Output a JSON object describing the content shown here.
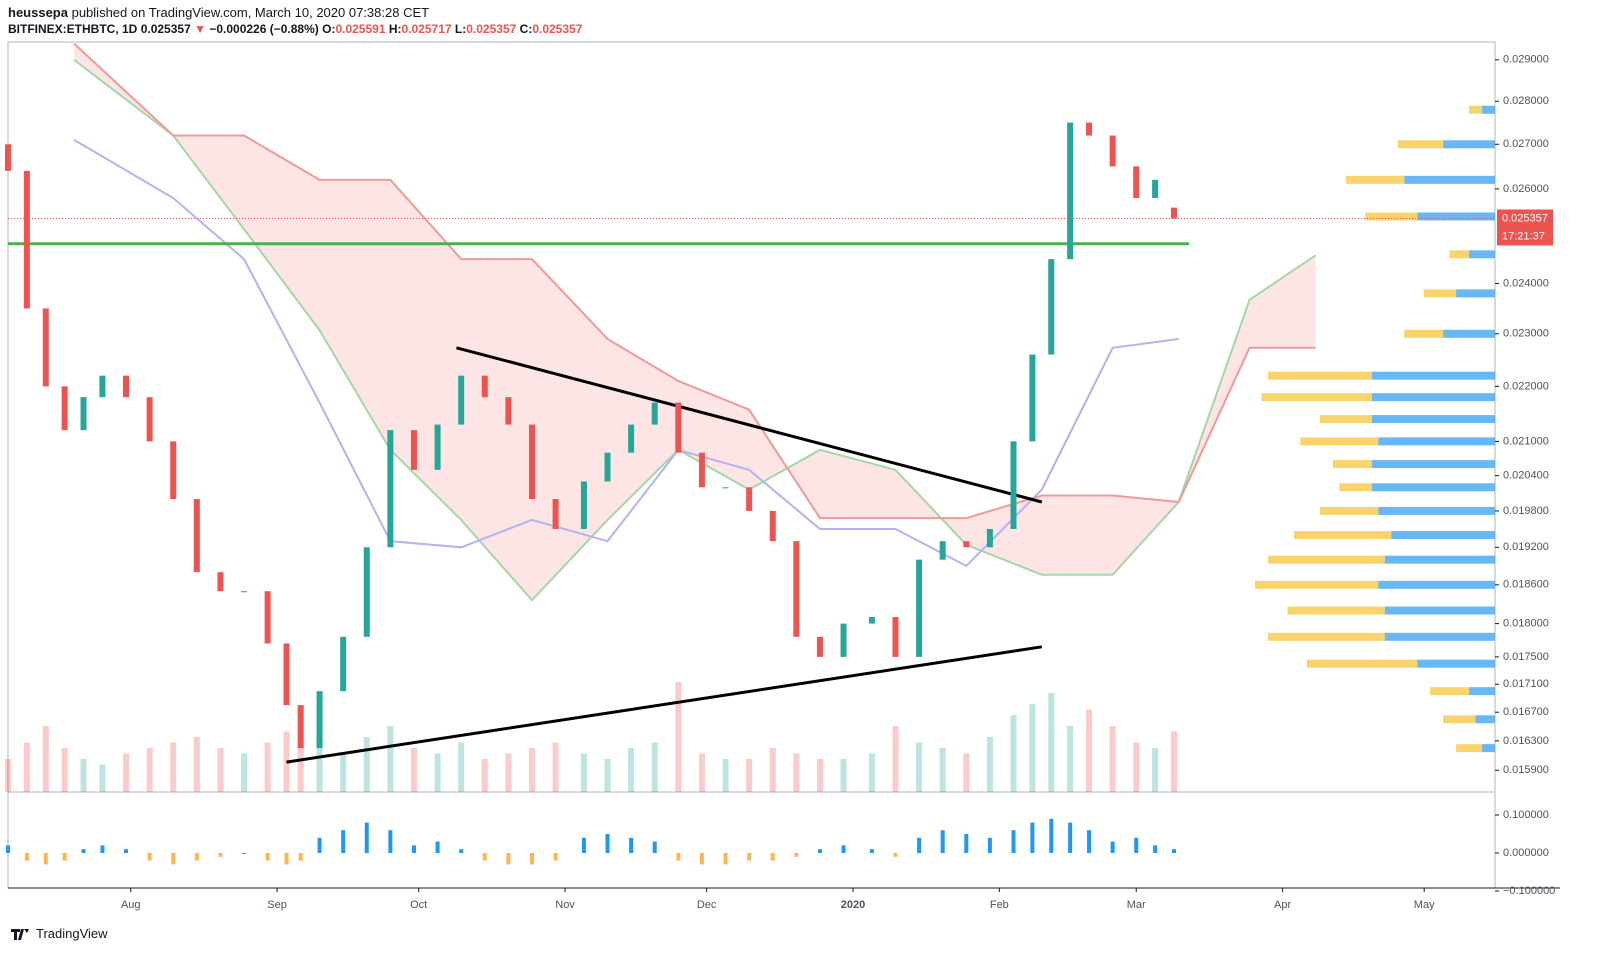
{
  "header": {
    "author": "heussepa",
    "published": " published on TradingView.com, March 10, 2020 07:38:28 CET",
    "symbol": "BITFINEX:ETHBTC, 1D",
    "last": "0.025357",
    "arrow": "▼",
    "change": "−0.000226 (−0.88%)",
    "o_label": "O:",
    "o": "0.025591",
    "h_label": "H:",
    "h": "0.025717",
    "l_label": "L:",
    "l": "0.025357",
    "c_label": "C:",
    "c": "0.025357"
  },
  "footer": {
    "brand": "TradingView"
  },
  "chart_data": {
    "type": "candlestick",
    "log_scale": true,
    "x": [
      "2019-07-06",
      "2019-07-10",
      "2019-07-14",
      "2019-07-18",
      "2019-07-22",
      "2019-07-26",
      "2019-07-31",
      "2019-08-05",
      "2019-08-10",
      "2019-08-15",
      "2019-08-20",
      "2019-08-25",
      "2019-08-30",
      "2019-09-03",
      "2019-09-06",
      "2019-09-10",
      "2019-09-15",
      "2019-09-20",
      "2019-09-25",
      "2019-09-30",
      "2019-10-05",
      "2019-10-10",
      "2019-10-15",
      "2019-10-20",
      "2019-10-25",
      "2019-10-30",
      "2019-11-05",
      "2019-11-10",
      "2019-11-15",
      "2019-11-20",
      "2019-11-25",
      "2019-11-30",
      "2019-12-05",
      "2019-12-10",
      "2019-12-15",
      "2019-12-20",
      "2019-12-25",
      "2019-12-30",
      "2020-01-05",
      "2020-01-10",
      "2020-01-15",
      "2020-01-20",
      "2020-01-25",
      "2020-01-30",
      "2020-02-04",
      "2020-02-08",
      "2020-02-12",
      "2020-02-16",
      "2020-02-20",
      "2020-02-25",
      "2020-03-01",
      "2020-03-05",
      "2020-03-09"
    ],
    "open": [
      0.027,
      0.0264,
      0.0235,
      0.022,
      0.0212,
      0.0218,
      0.0222,
      0.0218,
      0.021,
      0.02,
      0.0188,
      0.0185,
      0.0185,
      0.0177,
      0.0168,
      0.0162,
      0.017,
      0.0178,
      0.0192,
      0.0212,
      0.0205,
      0.0213,
      0.0222,
      0.0218,
      0.0213,
      0.02,
      0.0195,
      0.0203,
      0.0208,
      0.0213,
      0.0217,
      0.0208,
      0.0202,
      0.0202,
      0.0198,
      0.0193,
      0.0178,
      0.0175,
      0.018,
      0.0181,
      0.0175,
      0.019,
      0.0193,
      0.0192,
      0.0195,
      0.021,
      0.0226,
      0.0245,
      0.0275,
      0.0272,
      0.0265,
      0.0258,
      0.025591
    ],
    "close": [
      0.0264,
      0.0235,
      0.022,
      0.0212,
      0.0218,
      0.0222,
      0.0218,
      0.021,
      0.02,
      0.0188,
      0.0185,
      0.0185,
      0.0177,
      0.0168,
      0.0162,
      0.017,
      0.0178,
      0.0192,
      0.0212,
      0.0205,
      0.0213,
      0.0222,
      0.0218,
      0.0213,
      0.02,
      0.0195,
      0.0203,
      0.0208,
      0.0213,
      0.0217,
      0.0208,
      0.0202,
      0.0202,
      0.0198,
      0.0193,
      0.0178,
      0.0175,
      0.018,
      0.0181,
      0.0175,
      0.019,
      0.0193,
      0.0192,
      0.0195,
      0.021,
      0.0226,
      0.0245,
      0.0275,
      0.0272,
      0.0265,
      0.0258,
      0.0262,
      0.025357
    ],
    "volume": [
      30,
      45,
      60,
      40,
      30,
      25,
      35,
      40,
      45,
      50,
      40,
      35,
      45,
      55,
      40,
      45,
      35,
      50,
      60,
      40,
      35,
      45,
      30,
      35,
      40,
      45,
      35,
      30,
      40,
      45,
      100,
      35,
      30,
      30,
      40,
      35,
      30,
      30,
      35,
      60,
      45,
      40,
      35,
      50,
      70,
      80,
      90,
      60,
      75,
      60,
      45,
      40,
      55
    ],
    "oscillator": [
      0.02,
      -0.02,
      -0.03,
      -0.02,
      0.01,
      0.02,
      0.01,
      -0.02,
      -0.03,
      -0.02,
      -0.01,
      0,
      -0.02,
      -0.03,
      -0.02,
      0.04,
      0.06,
      0.08,
      0.06,
      0.02,
      0.03,
      0.01,
      -0.02,
      -0.03,
      -0.03,
      -0.02,
      0.04,
      0.05,
      0.04,
      0.03,
      -0.02,
      -0.03,
      -0.03,
      -0.02,
      -0.02,
      -0.01,
      0.01,
      0.02,
      0.01,
      -0.01,
      0.04,
      0.06,
      0.05,
      0.04,
      0.06,
      0.08,
      0.09,
      0.08,
      0.06,
      0.03,
      0.04,
      0.02,
      0.01
    ],
    "up_color": "#26a69a",
    "down_color": "#ef5350",
    "osc_up_color": "#2196f3",
    "osc_down_color": "#ffb74d",
    "xlim": [
      "2019-07-06",
      "2020-05-16"
    ],
    "xticks": [
      {
        "value": "2019-08-01",
        "label": "Aug"
      },
      {
        "value": "2019-09-01",
        "label": "Sep"
      },
      {
        "value": "2019-10-01",
        "label": "Oct"
      },
      {
        "value": "2019-11-01",
        "label": "Nov"
      },
      {
        "value": "2019-12-01",
        "label": "Dec"
      },
      {
        "value": "2020-01-01",
        "label": "2020"
      },
      {
        "value": "2020-02-01",
        "label": "Feb"
      },
      {
        "value": "2020-03-01",
        "label": "Mar"
      },
      {
        "value": "2020-04-01",
        "label": "Apr"
      },
      {
        "value": "2020-05-01",
        "label": "May"
      }
    ],
    "ylim": [
      0.01561,
      0.02944
    ],
    "yticks": [
      {
        "value": 0.029,
        "label": "0.029000"
      },
      {
        "value": 0.028,
        "label": "0.028000"
      },
      {
        "value": 0.027,
        "label": "0.027000"
      },
      {
        "value": 0.026,
        "label": "0.026000"
      },
      {
        "value": 0.024,
        "label": "0.024000"
      },
      {
        "value": 0.023,
        "label": "0.023000"
      },
      {
        "value": 0.022,
        "label": "0.022000"
      },
      {
        "value": 0.021,
        "label": "0.021000"
      },
      {
        "value": 0.0204,
        "label": "0.020400"
      },
      {
        "value": 0.0198,
        "label": "0.019800"
      },
      {
        "value": 0.0192,
        "label": "0.019200"
      },
      {
        "value": 0.0186,
        "label": "0.018600"
      },
      {
        "value": 0.018,
        "label": "0.018000"
      },
      {
        "value": 0.0175,
        "label": "0.017500"
      },
      {
        "value": 0.0171,
        "label": "0.017100"
      },
      {
        "value": 0.0167,
        "label": "0.016700"
      },
      {
        "value": 0.0163,
        "label": "0.016300"
      },
      {
        "value": 0.0159,
        "label": "0.015900"
      }
    ],
    "y2lim": [
      -0.0921,
      0.1605
    ],
    "y2ticks": [
      {
        "value": 0.1,
        "label": "0.100000"
      },
      {
        "value": 0,
        "label": "0.000000"
      },
      {
        "value": -0.1,
        "label": "−0.100000"
      }
    ],
    "last_price": {
      "value": 0.025357,
      "label": "0.025357",
      "countdown": "17:21:37",
      "color": "#ef5350"
    },
    "support_line": {
      "value": 0.02482,
      "color": "#4caf50"
    },
    "trendlines": [
      {
        "x": [
          "2019-10-09",
          "2020-02-10"
        ],
        "values": [
          0.02273,
          0.01995
        ]
      },
      {
        "x": [
          "2019-09-03",
          "2020-02-10"
        ],
        "values": [
          0.01601,
          0.01765
        ]
      }
    ],
    "cloud": {
      "x": [
        "2019-07-20",
        "2019-08-10",
        "2019-08-25",
        "2019-09-10",
        "2019-09-25",
        "2019-10-10",
        "2019-10-25",
        "2019-11-10",
        "2019-11-25",
        "2019-12-10",
        "2019-12-25",
        "2020-01-10",
        "2020-01-25",
        "2020-02-10",
        "2020-02-25",
        "2020-03-10",
        "2020-03-25",
        "2020-04-08"
      ],
      "span_a": [
        0.029,
        0.0272,
        0.02513,
        0.02307,
        0.02085,
        0.01965,
        0.01836,
        0.01965,
        0.02085,
        0.02016,
        0.02085,
        0.0205,
        0.01924,
        0.01876,
        0.01876,
        0.01995,
        0.02367,
        0.02458
      ],
      "span_b": [
        0.0294,
        0.0272,
        0.0272,
        0.0262,
        0.0262,
        0.0245,
        0.0245,
        0.0229,
        0.0221,
        0.02157,
        0.01968,
        0.01968,
        0.01968,
        0.02006,
        0.02006,
        0.01995,
        0.02273,
        0.02273
      ],
      "baseline": [
        0.0271,
        0.0258,
        0.0245,
        0.0217,
        0.0193,
        0.0192,
        0.01965,
        0.0193,
        0.02085,
        0.0205,
        0.0195,
        0.0195,
        0.0189,
        0.02016,
        0.02273,
        0.0229,
        null,
        null
      ],
      "span_a_color": "#a5d6a7",
      "span_b_color": "#ef9a9a",
      "baseline_color": "#b3b3f0",
      "fill_color": "#fcdede"
    },
    "profile": {
      "prices": [
        0.0162,
        0.0166,
        0.017,
        0.0174,
        0.0178,
        0.0182,
        0.0186,
        0.019,
        0.0194,
        0.0198,
        0.0202,
        0.0206,
        0.021,
        0.0214,
        0.0218,
        0.0222,
        0.023,
        0.0238,
        0.0246,
        0.0254,
        0.0262,
        0.027,
        0.0278
      ],
      "up": [
        10,
        15,
        20,
        60,
        85,
        85,
        90,
        85,
        80,
        90,
        95,
        95,
        90,
        95,
        95,
        95,
        40,
        30,
        20,
        60,
        70,
        40,
        10
      ],
      "down": [
        20,
        25,
        30,
        85,
        90,
        75,
        95,
        90,
        75,
        45,
        25,
        30,
        60,
        40,
        85,
        80,
        30,
        25,
        15,
        40,
        45,
        35,
        10
      ],
      "up_color": "#42a5f5",
      "down_color": "#f7c948"
    }
  }
}
